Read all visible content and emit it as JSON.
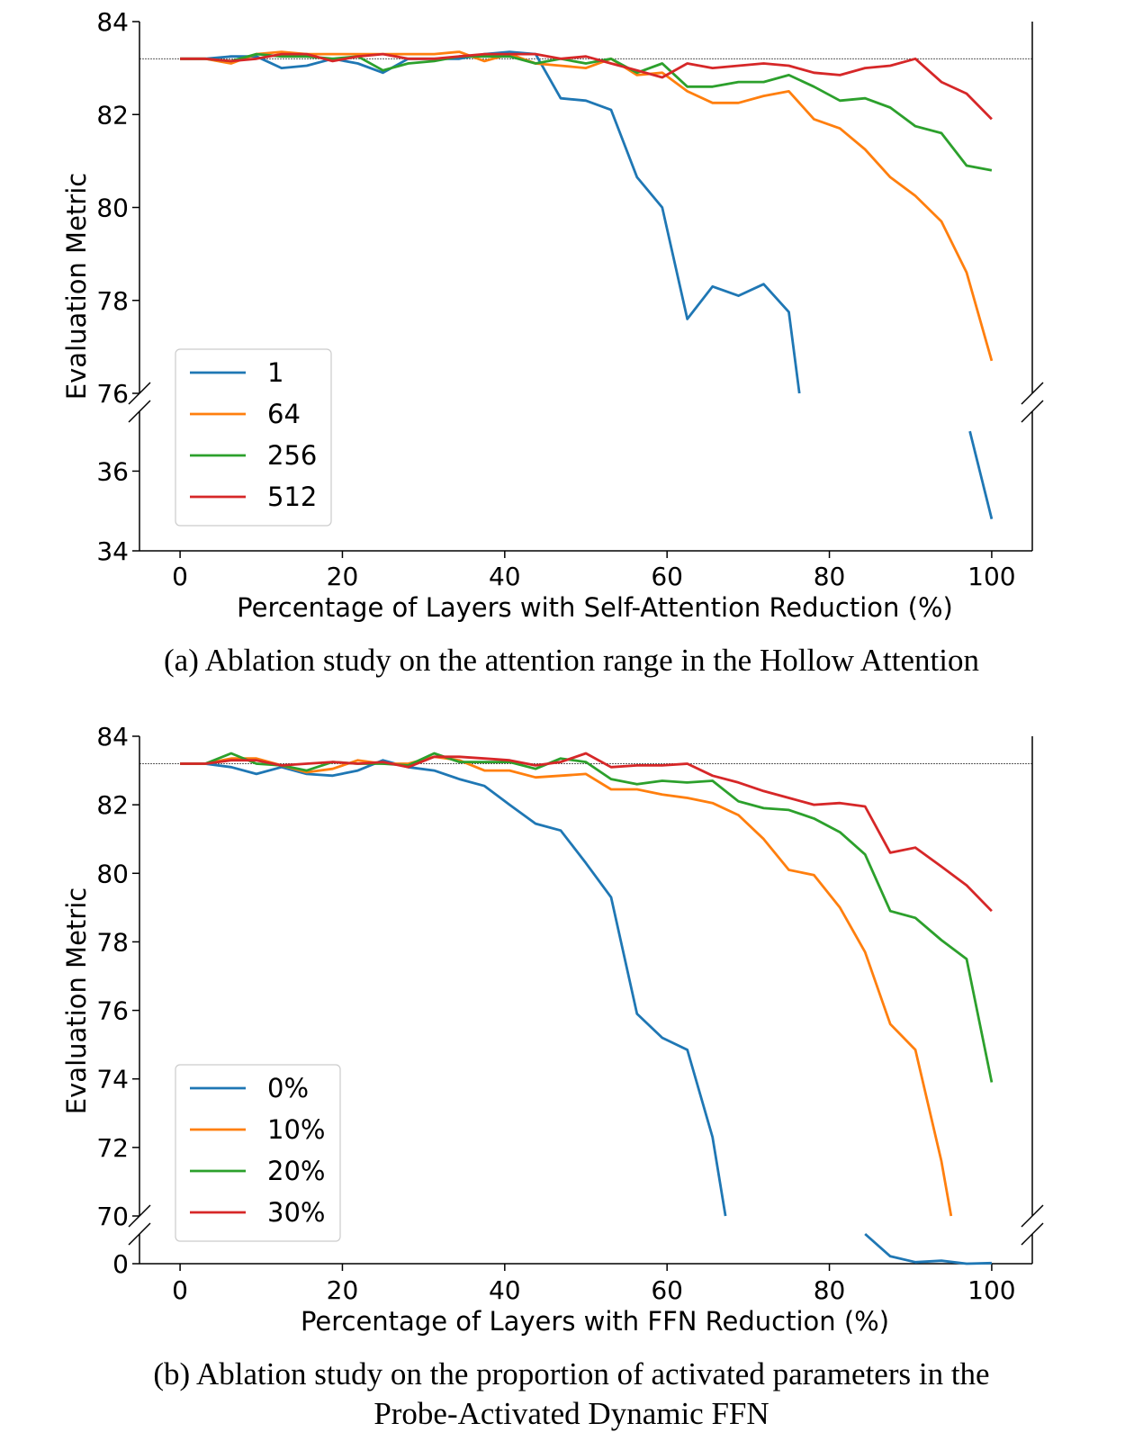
{
  "chart_data": [
    {
      "type": "line",
      "title": "",
      "xlabel": "Percentage of Layers with Self-Attention Reduction (%)",
      "ylabel": "Evaluation Metric",
      "xlim": [
        -5,
        105
      ],
      "ylim_upper": [
        76,
        84
      ],
      "ylim_lower": [
        34,
        37.5
      ],
      "upper_yticks": [
        76,
        78,
        80,
        82,
        84
      ],
      "lower_yticks": [
        34,
        36
      ],
      "xticks": [
        0,
        20,
        40,
        60,
        80,
        100
      ],
      "baseline": 83.2,
      "caption": "(a) Ablation study on the attention range in the Hollow Attention",
      "legend_location": "lower-left",
      "series": [
        {
          "name": "1",
          "color": "#1f77b4",
          "x": [
            0,
            3.1,
            6.3,
            9.4,
            12.5,
            15.6,
            18.8,
            21.9,
            25,
            28.1,
            31.3,
            34.4,
            37.5,
            40.6,
            43.8,
            46.9,
            50,
            53.1,
            56.3,
            59.4,
            62.5,
            65.6,
            68.8,
            71.9,
            75,
            76.3
          ],
          "y": [
            83.2,
            83.2,
            83.25,
            83.25,
            83.0,
            83.05,
            83.2,
            83.1,
            82.9,
            83.2,
            83.2,
            83.2,
            83.3,
            83.35,
            83.3,
            82.35,
            82.3,
            82.1,
            80.65,
            80.0,
            77.6,
            78.3,
            78.1,
            78.35,
            77.75,
            76.0
          ],
          "lower_x": [
            97.3,
            100
          ],
          "lower_y": [
            37.0,
            34.8
          ]
        },
        {
          "name": "64",
          "color": "#ff7f0e",
          "x": [
            0,
            3.1,
            6.3,
            9.4,
            12.5,
            15.6,
            18.8,
            21.9,
            25,
            28.1,
            31.3,
            34.4,
            37.5,
            40.6,
            43.8,
            46.9,
            50,
            53.1,
            56.3,
            59.4,
            62.5,
            65.6,
            68.8,
            71.9,
            75,
            78.1,
            81.3,
            84.4,
            87.5,
            90.6,
            93.8,
            96.9,
            100
          ],
          "y": [
            83.2,
            83.2,
            83.1,
            83.3,
            83.35,
            83.3,
            83.3,
            83.3,
            83.3,
            83.3,
            83.3,
            83.35,
            83.15,
            83.3,
            83.1,
            83.05,
            83.0,
            83.2,
            82.85,
            82.9,
            82.5,
            82.25,
            82.25,
            82.4,
            82.5,
            81.9,
            81.7,
            81.25,
            80.65,
            80.25,
            79.7,
            78.6,
            76.7
          ]
        },
        {
          "name": "256",
          "color": "#2ca02c",
          "x": [
            0,
            3.1,
            6.3,
            9.4,
            12.5,
            15.6,
            18.8,
            21.9,
            25,
            28.1,
            31.3,
            34.4,
            37.5,
            40.6,
            43.8,
            46.9,
            50,
            53.1,
            56.3,
            59.4,
            62.5,
            65.6,
            68.8,
            71.9,
            75,
            78.1,
            81.3,
            84.4,
            87.5,
            90.6,
            93.8,
            96.9,
            100
          ],
          "y": [
            83.2,
            83.2,
            83.15,
            83.3,
            83.25,
            83.25,
            83.2,
            83.25,
            82.95,
            83.1,
            83.15,
            83.25,
            83.25,
            83.25,
            83.1,
            83.2,
            83.1,
            83.2,
            82.9,
            83.1,
            82.6,
            82.6,
            82.7,
            82.7,
            82.85,
            82.6,
            82.3,
            82.35,
            82.15,
            81.75,
            81.6,
            80.9,
            80.8
          ]
        },
        {
          "name": "512",
          "color": "#d62728",
          "x": [
            0,
            3.1,
            6.3,
            9.4,
            12.5,
            15.6,
            18.8,
            21.9,
            25,
            28.1,
            31.3,
            34.4,
            37.5,
            40.6,
            43.8,
            46.9,
            50,
            53.1,
            56.3,
            59.4,
            62.5,
            65.6,
            68.8,
            71.9,
            75,
            78.1,
            81.3,
            84.4,
            87.5,
            90.6,
            93.8,
            96.9,
            100
          ],
          "y": [
            83.2,
            83.2,
            83.15,
            83.2,
            83.3,
            83.3,
            83.15,
            83.25,
            83.3,
            83.2,
            83.2,
            83.25,
            83.3,
            83.3,
            83.3,
            83.2,
            83.25,
            83.1,
            82.95,
            82.8,
            83.1,
            83.0,
            83.05,
            83.1,
            83.05,
            82.9,
            82.85,
            83.0,
            83.05,
            83.2,
            82.7,
            82.45,
            81.9
          ]
        }
      ]
    },
    {
      "type": "line",
      "title": "",
      "xlabel": "Percentage of Layers with FFN Reduction (%)",
      "ylabel": "Evaluation Metric",
      "xlim": [
        -5,
        105
      ],
      "ylim_upper": [
        70,
        84
      ],
      "ylim_lower": [
        0,
        1
      ],
      "upper_yticks": [
        70,
        72,
        74,
        76,
        78,
        80,
        82,
        84
      ],
      "lower_yticks": [
        0
      ],
      "xticks": [
        0,
        20,
        40,
        60,
        80,
        100
      ],
      "baseline": 83.2,
      "caption": "(b) Ablation study on the proportion of activated parameters in the Probe-Activated Dynamic FFN",
      "legend_location": "lower-left",
      "series": [
        {
          "name": "0%",
          "color": "#1f77b4",
          "x": [
            0,
            3.1,
            6.3,
            9.4,
            12.5,
            15.6,
            18.8,
            21.9,
            25,
            28.1,
            31.3,
            34.4,
            37.5,
            40.6,
            43.8,
            46.9,
            50,
            53.1,
            56.3,
            59.4,
            62.5,
            65.6,
            67.2
          ],
          "y": [
            83.2,
            83.2,
            83.1,
            82.9,
            83.1,
            82.9,
            82.85,
            83.0,
            83.3,
            83.1,
            83.0,
            82.75,
            82.55,
            82.0,
            81.45,
            81.25,
            80.3,
            79.3,
            75.9,
            75.2,
            74.85,
            72.3,
            70.0
          ],
          "lower_x": [
            84.4,
            87.5,
            90.6,
            93.8,
            96.9,
            100
          ],
          "lower_y": [
            1.0,
            0.25,
            0.05,
            0.1,
            0.0,
            0.02
          ]
        },
        {
          "name": "10%",
          "color": "#ff7f0e",
          "x": [
            0,
            3.1,
            6.3,
            9.4,
            12.5,
            15.6,
            18.8,
            21.9,
            25,
            28.1,
            31.3,
            34.4,
            37.5,
            40.6,
            43.8,
            46.9,
            50,
            53.1,
            56.3,
            59.4,
            62.5,
            65.6,
            68.8,
            71.9,
            75,
            78.1,
            81.3,
            84.4,
            87.5,
            90.6,
            93.8,
            95
          ],
          "y": [
            83.2,
            83.2,
            83.35,
            83.35,
            83.15,
            82.95,
            83.05,
            83.3,
            83.2,
            83.2,
            83.4,
            83.3,
            83.0,
            83.0,
            82.8,
            82.85,
            82.9,
            82.45,
            82.45,
            82.3,
            82.2,
            82.05,
            81.7,
            81.0,
            80.1,
            79.95,
            79.0,
            77.7,
            75.6,
            74.85,
            71.6,
            70.0
          ]
        },
        {
          "name": "20%",
          "color": "#2ca02c",
          "x": [
            0,
            3.1,
            6.3,
            9.4,
            12.5,
            15.6,
            18.8,
            21.9,
            25,
            28.1,
            31.3,
            34.4,
            37.5,
            40.6,
            43.8,
            46.9,
            50,
            53.1,
            56.3,
            59.4,
            62.5,
            65.6,
            68.8,
            71.9,
            75,
            78.1,
            81.3,
            84.4,
            87.5,
            90.6,
            93.8,
            96.9,
            100
          ],
          "y": [
            83.2,
            83.2,
            83.5,
            83.2,
            83.15,
            83.0,
            83.25,
            83.2,
            83.2,
            83.15,
            83.5,
            83.25,
            83.25,
            83.25,
            83.05,
            83.35,
            83.25,
            82.75,
            82.6,
            82.7,
            82.65,
            82.7,
            82.1,
            81.9,
            81.85,
            81.6,
            81.2,
            80.55,
            78.9,
            78.7,
            78.05,
            77.5,
            73.9
          ]
        },
        {
          "name": "30%",
          "color": "#d62728",
          "x": [
            0,
            3.1,
            6.3,
            9.4,
            12.5,
            15.6,
            18.8,
            21.9,
            25,
            28.1,
            31.3,
            34.4,
            37.5,
            40.6,
            43.8,
            46.9,
            50,
            53.1,
            56.3,
            59.4,
            62.5,
            65.6,
            68.8,
            71.9,
            75,
            78.1,
            81.3,
            84.4,
            87.5,
            90.6,
            93.8,
            96.9,
            100
          ],
          "y": [
            83.2,
            83.2,
            83.3,
            83.3,
            83.15,
            83.2,
            83.25,
            83.2,
            83.25,
            83.1,
            83.4,
            83.4,
            83.35,
            83.3,
            83.15,
            83.25,
            83.5,
            83.1,
            83.15,
            83.15,
            83.2,
            82.85,
            82.65,
            82.4,
            82.2,
            82.0,
            82.05,
            81.95,
            80.6,
            80.75,
            80.2,
            79.65,
            78.9
          ]
        }
      ]
    }
  ]
}
